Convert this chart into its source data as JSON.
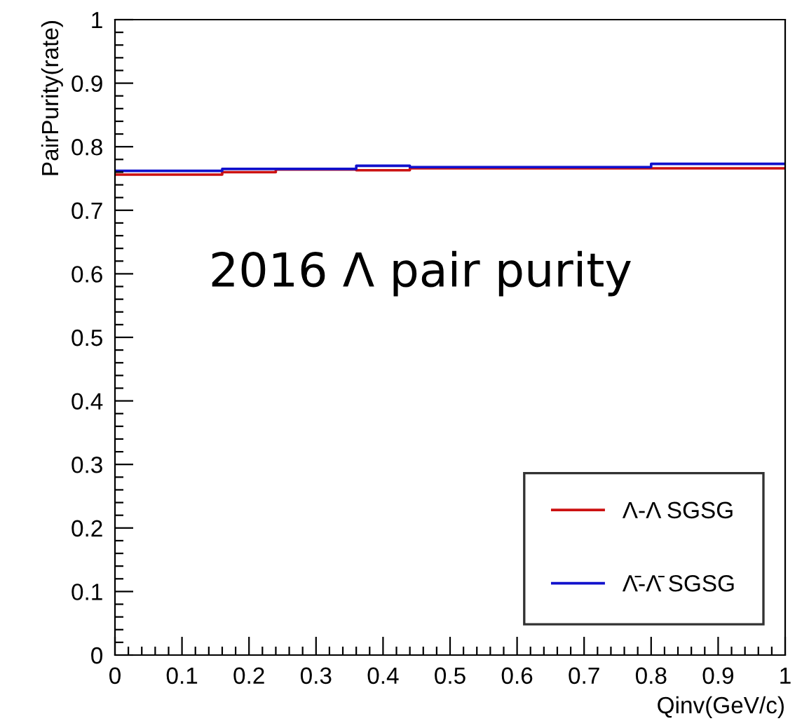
{
  "chart_data": {
    "type": "step",
    "xlabel": "Qinv(GeV/c)",
    "ylabel": "PairPurity(rate)",
    "series": [
      {
        "name": "Λ-Λ SGSG",
        "color": "#cc1111",
        "x": [
          0,
          0.16,
          0.24,
          0.36,
          0.44,
          0.8,
          1.0
        ],
        "values": [
          0.756,
          0.76,
          0.764,
          0.763,
          0.766,
          0.766,
          0.766
        ]
      },
      {
        "name": "Λ̄-Λ̄ SGSG",
        "color": "#1111cc",
        "x": [
          0,
          0.16,
          0.24,
          0.36,
          0.44,
          0.8,
          1.0
        ],
        "values": [
          0.762,
          0.765,
          0.765,
          0.77,
          0.768,
          0.773,
          0.773
        ]
      }
    ],
    "annotations": [
      "2016 Λ pair purity"
    ],
    "xlim": [
      0,
      1
    ],
    "ylim": [
      0,
      1
    ],
    "xticks": [
      0,
      0.1,
      0.2,
      0.3,
      0.4,
      0.5,
      0.6,
      0.7,
      0.8,
      0.9,
      1
    ],
    "yticks": [
      0,
      0.1,
      0.2,
      0.3,
      0.4,
      0.5,
      0.6,
      0.7,
      0.8,
      0.9,
      1
    ],
    "grid": false,
    "legend": "bottom right"
  }
}
